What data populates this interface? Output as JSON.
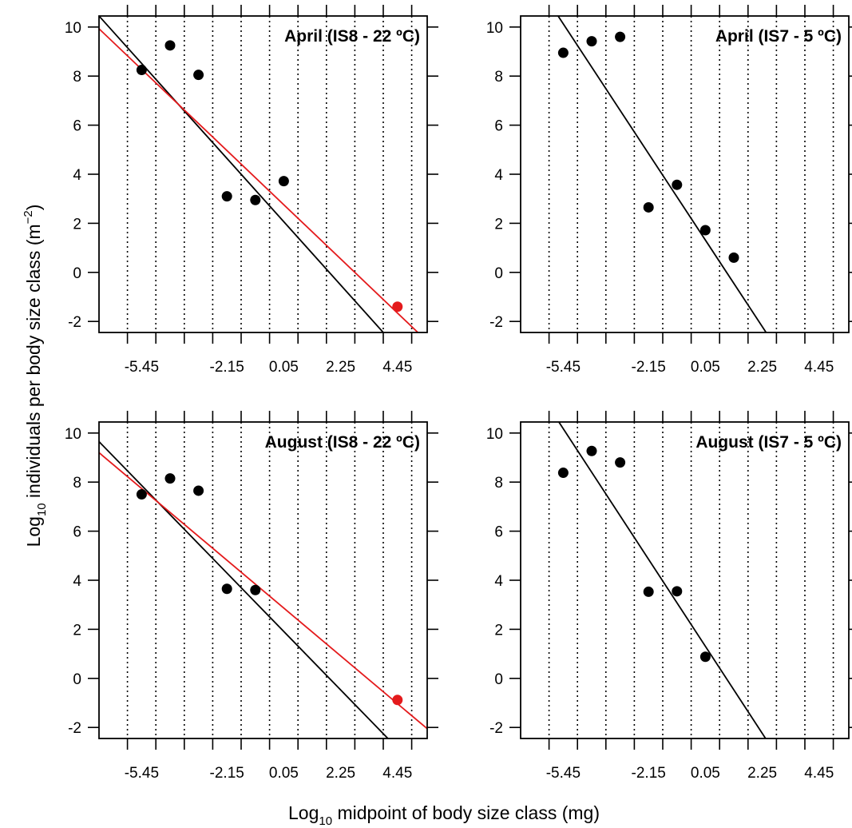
{
  "figure": {
    "ylabel_main": "Log",
    "ylabel_sub": "10",
    "ylabel_rest": " individuals per body size class (m",
    "ylabel_sup": "−2",
    "ylabel_end": ")",
    "xlabel_main": "Log",
    "xlabel_sub": "10",
    "xlabel_rest": " midpoint of body size class (mg)"
  },
  "colors": {
    "black": "#000000",
    "red": "#e41a1c"
  },
  "chart_data": [
    {
      "type": "scatter",
      "title": "April (IS8 - 22 ºC)",
      "xlim": [
        -7.1,
        5.6
      ],
      "ylim": [
        -2.45,
        10.45
      ],
      "xticks": [
        -5.45,
        -2.15,
        0.05,
        2.25,
        4.45
      ],
      "yticks": [
        10,
        8,
        6,
        4,
        2,
        0,
        -2
      ],
      "vlines": [
        -6.0,
        -4.9,
        -3.8,
        -2.7,
        -1.6,
        -0.5,
        0.6,
        1.7,
        2.8,
        3.9,
        5.0
      ],
      "points_black": [
        [
          -5.45,
          8.25
        ],
        [
          -4.35,
          9.25
        ],
        [
          -3.25,
          8.05
        ],
        [
          -2.15,
          3.1
        ],
        [
          -1.05,
          2.95
        ],
        [
          0.05,
          3.72
        ]
      ],
      "points_red": [
        [
          4.45,
          -1.4
        ]
      ],
      "line_black": [
        [
          -7.1,
          10.45
        ],
        [
          3.9,
          -2.45
        ]
      ],
      "line_red": [
        [
          -7.1,
          9.93
        ],
        [
          5.24,
          -2.45
        ]
      ]
    },
    {
      "type": "scatter",
      "title": "April (IS7 - 5 ºC)",
      "xlim": [
        -7.1,
        5.6
      ],
      "ylim": [
        -2.45,
        10.45
      ],
      "xticks": [
        -5.45,
        -2.15,
        0.05,
        2.25,
        4.45
      ],
      "yticks": [
        10,
        8,
        6,
        4,
        2,
        0,
        -2
      ],
      "vlines": [
        -6.0,
        -4.9,
        -3.8,
        -2.7,
        -1.6,
        -0.5,
        0.6,
        1.7,
        2.8,
        3.9,
        5.0
      ],
      "points_black": [
        [
          -5.45,
          8.95
        ],
        [
          -4.35,
          9.42
        ],
        [
          -3.25,
          9.6
        ],
        [
          -2.15,
          2.65
        ],
        [
          -1.05,
          3.57
        ],
        [
          0.05,
          1.72
        ],
        [
          1.15,
          0.6
        ]
      ],
      "points_red": [],
      "line_black": [
        [
          -5.65,
          10.45
        ],
        [
          2.4,
          -2.45
        ]
      ],
      "line_red": []
    },
    {
      "type": "scatter",
      "title": "August (IS8 - 22 ºC)",
      "xlim": [
        -7.1,
        5.6
      ],
      "ylim": [
        -2.45,
        10.45
      ],
      "xticks": [
        -5.45,
        -2.15,
        0.05,
        2.25,
        4.45
      ],
      "yticks": [
        10,
        8,
        6,
        4,
        2,
        0,
        -2
      ],
      "vlines": [
        -6.0,
        -4.9,
        -3.8,
        -2.7,
        -1.6,
        -0.5,
        0.6,
        1.7,
        2.8,
        3.9,
        5.0
      ],
      "points_black": [
        [
          -5.45,
          7.5
        ],
        [
          -4.35,
          8.15
        ],
        [
          -3.25,
          7.65
        ],
        [
          -2.15,
          3.65
        ],
        [
          -1.05,
          3.6
        ]
      ],
      "points_red": [
        [
          4.45,
          -0.88
        ]
      ],
      "line_black": [
        [
          -7.1,
          9.65
        ],
        [
          4.08,
          -2.45
        ]
      ],
      "line_red": [
        [
          -7.1,
          9.2
        ],
        [
          5.6,
          -2.05
        ]
      ]
    },
    {
      "type": "scatter",
      "title": "August (IS7 - 5 ºC)",
      "xlim": [
        -7.1,
        5.6
      ],
      "ylim": [
        -2.45,
        10.45
      ],
      "xticks": [
        -5.45,
        -2.15,
        0.05,
        2.25,
        4.45
      ],
      "yticks": [
        10,
        8,
        6,
        4,
        2,
        0,
        -2
      ],
      "vlines": [
        -6.0,
        -4.9,
        -3.8,
        -2.7,
        -1.6,
        -0.5,
        0.6,
        1.7,
        2.8,
        3.9,
        5.0
      ],
      "points_black": [
        [
          -5.45,
          8.38
        ],
        [
          -4.35,
          9.27
        ],
        [
          -3.25,
          8.8
        ],
        [
          -2.15,
          3.53
        ],
        [
          -1.05,
          3.55
        ],
        [
          0.05,
          0.88
        ]
      ],
      "points_red": [],
      "line_black": [
        [
          -5.62,
          10.45
        ],
        [
          2.38,
          -2.45
        ]
      ],
      "line_red": []
    }
  ]
}
